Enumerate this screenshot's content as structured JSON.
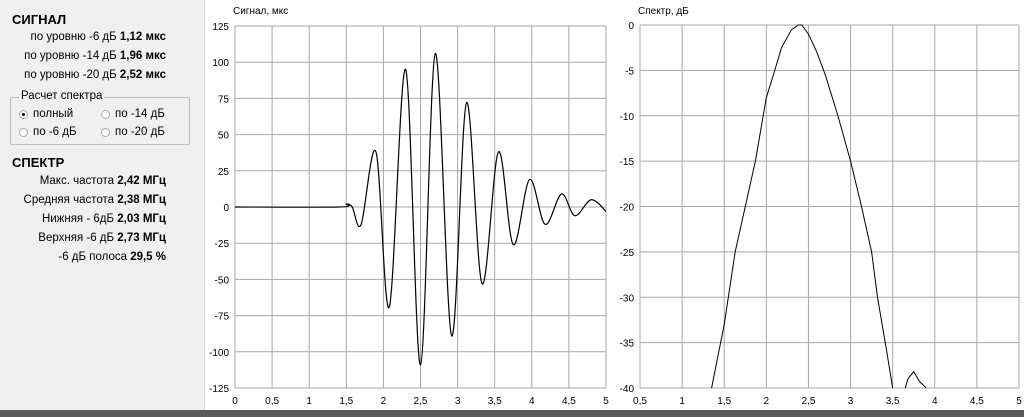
{
  "signal_panel": {
    "title": "СИГНАЛ",
    "rows": [
      {
        "label": "по уровню -6 дБ",
        "value": "1,12 мкс"
      },
      {
        "label": "по уровню -14  дБ",
        "value": "1,96 мкс"
      },
      {
        "label": "по уровню -20  дБ",
        "value": "2,52 мкс"
      }
    ]
  },
  "spectrum_calc": {
    "legend": "Расчет спектра",
    "options": [
      {
        "label": "полный",
        "selected": true
      },
      {
        "label": "по -14 дБ",
        "selected": false
      },
      {
        "label": "по -6 дБ",
        "selected": false
      },
      {
        "label": "по -20 дБ",
        "selected": false
      }
    ]
  },
  "spectrum_panel": {
    "title": "СПЕКТР",
    "rows": [
      {
        "label": "Макс. частота",
        "value": "2,42 МГц"
      },
      {
        "label": "Средняя частота",
        "value": "2,38 МГц"
      },
      {
        "label": "Нижняя - 6дБ",
        "value": "2,03 МГц"
      },
      {
        "label": "Верхняя -6 дБ",
        "value": "2,73 МГц"
      },
      {
        "label": "-6 дБ полоса",
        "value": "29,5 %"
      }
    ]
  },
  "chart_data": [
    {
      "type": "line",
      "title": "Сигнал, мкс",
      "xlim": [
        0,
        5
      ],
      "ylim": [
        -125,
        125
      ],
      "grid": true,
      "xticks": [
        "0",
        "0,5",
        "1",
        "1,5",
        "2",
        "2,5",
        "3",
        "3,5",
        "4",
        "4,5",
        "5"
      ],
      "yticks": [
        "125",
        "100",
        "75",
        "50",
        "25",
        "0",
        "-25",
        "-50",
        "-75",
        "-100",
        "-125"
      ],
      "x": [
        0,
        1.4,
        1.5,
        1.58,
        1.7,
        1.9,
        2.08,
        2.3,
        2.5,
        2.7,
        2.92,
        3.12,
        3.33,
        3.55,
        3.75,
        3.97,
        4.18,
        4.4,
        4.58,
        4.8,
        5.0
      ],
      "y": [
        0,
        0,
        2,
        0,
        -12,
        38,
        -69,
        95,
        -109,
        106,
        -89,
        72,
        -53,
        38,
        -26,
        19,
        -12,
        9,
        -6,
        5,
        -3
      ]
    },
    {
      "type": "line",
      "title": "Спектр, дБ",
      "xlim": [
        0.5,
        5
      ],
      "ylim": [
        -40,
        0
      ],
      "grid": true,
      "xticks": [
        "0,5",
        "1",
        "1,5",
        "2",
        "2,5",
        "3",
        "3,5",
        "4",
        "4,5",
        "5"
      ],
      "yticks": [
        "0",
        "-5",
        "-10",
        "-15",
        "-20",
        "-25",
        "-30",
        "-35",
        "-40"
      ],
      "segments": [
        {
          "x": [
            1.35,
            1.5,
            1.63,
            1.75,
            1.87,
            2.0,
            2.1,
            2.18,
            2.3,
            2.38,
            2.42,
            2.5,
            2.6,
            2.7,
            2.85,
            3.0,
            3.13,
            3.25,
            3.32,
            3.43,
            3.5
          ],
          "y": [
            -40,
            -33,
            -25,
            -20,
            -15,
            -8,
            -5,
            -2.5,
            -0.5,
            0,
            0,
            -1,
            -3,
            -5.5,
            -10,
            -15,
            -20,
            -25,
            -30,
            -36,
            -40
          ]
        },
        {
          "x": [
            3.65,
            3.68,
            3.75,
            3.82,
            3.9
          ],
          "y": [
            -40,
            -39,
            -38.2,
            -39.3,
            -40
          ]
        }
      ]
    }
  ]
}
